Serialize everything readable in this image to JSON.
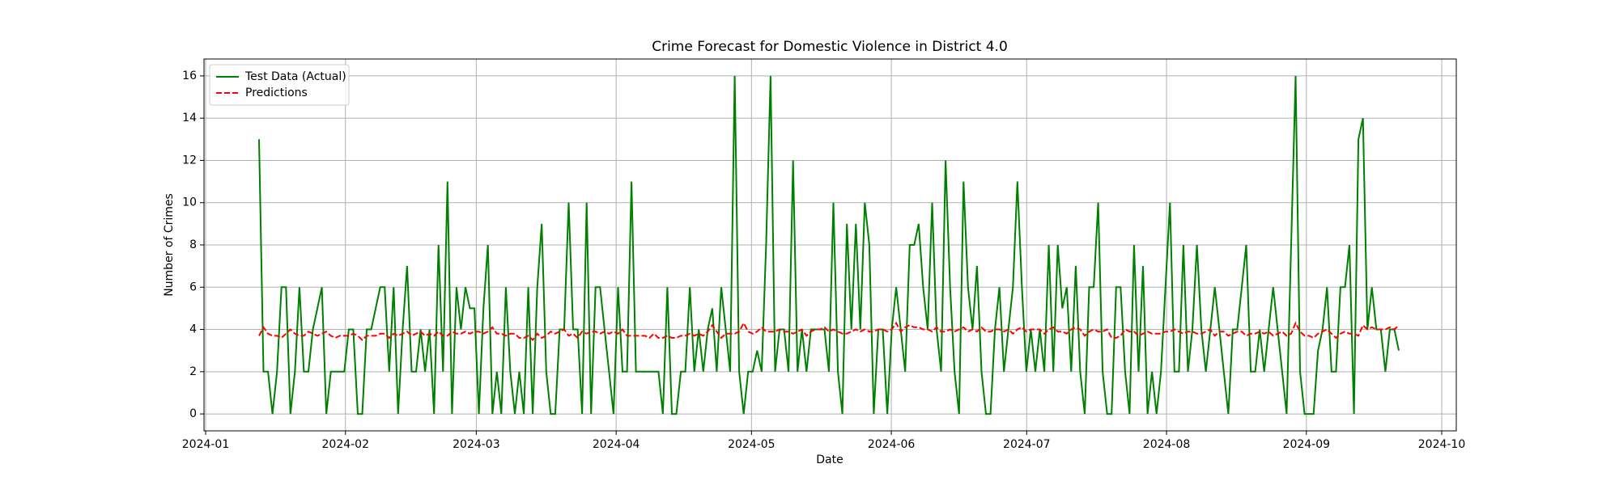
{
  "chart_data": {
    "type": "line",
    "title": "Crime Forecast for Domestic Violence in District 4.0",
    "xlabel": "Date",
    "ylabel": "Number of Crimes",
    "xticks": [
      "2024-01",
      "2024-02",
      "2024-03",
      "2024-04",
      "2024-05",
      "2024-06",
      "2024-07",
      "2024-08",
      "2024-09",
      "2024-10"
    ],
    "ylim": [
      -0.8,
      16.8
    ],
    "yticks": [
      0,
      2,
      4,
      6,
      8,
      10,
      12,
      14,
      16
    ],
    "grid": true,
    "legend": "upper left",
    "series": [
      {
        "name": "Test Data (Actual)",
        "color": "#008000",
        "style": "solid",
        "values": [
          13,
          2,
          2,
          0,
          2,
          6,
          6,
          0,
          2,
          6,
          2,
          2,
          4,
          5,
          6,
          0,
          2,
          2,
          2,
          2,
          4,
          4,
          0,
          0,
          4,
          4,
          5,
          6,
          6,
          2,
          6,
          0,
          4,
          7,
          2,
          2,
          4,
          2,
          4,
          0,
          8,
          2,
          11,
          0,
          6,
          4,
          6,
          5,
          5,
          0,
          5,
          8,
          0,
          2,
          0,
          6,
          2,
          0,
          2,
          0,
          6,
          0,
          6,
          9,
          2,
          0,
          0,
          4,
          4,
          10,
          4,
          4,
          0,
          10,
          0,
          6,
          6,
          4,
          2,
          0,
          6,
          2,
          2,
          11,
          2,
          2,
          2,
          2,
          2,
          2,
          0,
          6,
          0,
          0,
          2,
          2,
          6,
          2,
          4,
          2,
          4,
          5,
          2,
          6,
          4,
          2,
          16,
          2,
          0,
          2,
          2,
          3,
          2,
          8,
          16,
          2,
          4,
          4,
          2,
          12,
          2,
          4,
          2,
          4,
          4,
          4,
          4,
          2,
          10,
          2,
          0,
          9,
          4,
          9,
          4,
          10,
          8,
          0,
          4,
          4,
          0,
          4,
          6,
          4,
          2,
          8,
          8,
          9,
          6,
          4,
          10,
          4,
          2,
          12,
          6,
          2,
          0,
          11,
          6,
          4,
          7,
          2,
          0,
          0,
          4,
          6,
          2,
          4,
          6,
          11,
          6,
          2,
          4,
          2,
          4,
          2,
          8,
          2,
          8,
          5,
          6,
          2,
          7,
          2,
          0,
          6,
          6,
          10,
          2,
          0,
          0,
          6,
          6,
          2,
          0,
          8,
          2,
          7,
          0,
          2,
          0,
          2,
          6,
          10,
          2,
          2,
          8,
          2,
          4,
          8,
          4,
          2,
          4,
          6,
          4,
          2,
          0,
          4,
          4,
          6,
          8,
          2,
          2,
          4,
          2,
          4,
          6,
          4,
          2,
          0,
          8,
          16,
          2,
          0,
          0,
          0,
          3,
          4,
          6,
          2,
          2,
          6,
          6,
          8,
          0,
          13,
          14,
          4,
          6,
          4,
          4,
          2,
          4,
          4,
          3
        ]
      },
      {
        "name": "Predictions",
        "color": "#ff0000",
        "style": "dashed",
        "values": [
          3.7,
          4.1,
          3.8,
          3.7,
          3.7,
          3.6,
          3.8,
          4.0,
          3.8,
          3.7,
          3.7,
          3.9,
          3.8,
          3.7,
          3.8,
          3.9,
          3.7,
          3.6,
          3.7,
          3.7,
          3.7,
          3.8,
          3.7,
          3.5,
          3.7,
          3.7,
          3.7,
          3.8,
          3.8,
          3.6,
          3.8,
          3.7,
          3.8,
          3.9,
          3.7,
          3.8,
          3.9,
          3.7,
          3.8,
          3.7,
          3.9,
          3.7,
          3.7,
          3.9,
          3.8,
          3.8,
          3.9,
          3.8,
          3.9,
          3.9,
          3.8,
          3.9,
          4.1,
          3.8,
          3.8,
          3.7,
          3.8,
          3.8,
          3.6,
          3.6,
          3.7,
          3.5,
          3.8,
          3.6,
          3.7,
          3.9,
          3.8,
          3.9,
          4.0,
          3.7,
          3.8,
          3.6,
          3.9,
          3.8,
          3.9,
          3.9,
          3.8,
          3.9,
          3.8,
          3.9,
          3.8,
          4.0,
          3.7,
          3.7,
          3.7,
          3.7,
          3.7,
          3.6,
          3.8,
          3.6,
          3.6,
          3.7,
          3.6,
          3.6,
          3.7,
          3.7,
          3.8,
          3.7,
          3.8,
          3.7,
          3.9,
          4.2,
          3.9,
          3.6,
          3.8,
          3.8,
          3.8,
          3.9,
          4.3,
          3.9,
          3.8,
          3.9,
          4.1,
          3.9,
          3.9,
          3.9,
          4.0,
          3.9,
          3.9,
          3.8,
          3.9,
          4.0,
          3.7,
          3.9,
          4.0,
          4.0,
          4.1,
          3.9,
          4.0,
          3.9,
          3.8,
          3.8,
          3.9,
          4.0,
          3.9,
          4.0,
          3.9,
          3.9,
          4.0,
          4.0,
          3.9,
          4.0,
          4.3,
          3.9,
          4.1,
          4.2,
          4.1,
          4.1,
          4.0,
          4.0,
          3.9,
          4.1,
          3.9,
          3.9,
          4.0,
          3.9,
          4.0,
          4.1,
          3.9,
          4.0,
          3.9,
          4.1,
          3.9,
          3.9,
          4.0,
          4.0,
          3.9,
          4.0,
          3.8,
          4.0,
          4.1,
          3.9,
          4.0,
          4.0,
          4.0,
          3.8,
          4.0,
          4.1,
          3.9,
          3.9,
          3.8,
          4.0,
          4.1,
          4.0,
          3.7,
          3.9,
          4.0,
          3.9,
          3.9,
          4.0,
          3.6,
          3.6,
          3.7,
          4.0,
          3.9,
          3.9,
          3.7,
          3.8,
          3.9,
          3.8,
          3.8,
          3.8,
          3.9,
          3.9,
          4.0,
          3.9,
          3.8,
          3.9,
          3.9,
          3.8,
          3.8,
          3.9,
          4.0,
          3.7,
          3.9,
          3.9,
          3.7,
          3.8,
          3.9,
          3.9,
          3.7,
          3.8,
          3.8,
          3.9,
          3.8,
          3.9,
          3.7,
          3.8,
          3.9,
          3.7,
          3.8,
          4.3,
          3.9,
          3.7,
          3.7,
          3.6,
          3.8,
          3.9,
          4.0,
          3.8,
          3.6,
          3.8,
          3.9,
          3.8,
          3.8,
          3.7,
          4.2,
          4.0,
          4.1,
          4.0,
          4.0,
          4.0,
          4.1,
          4.0,
          4.2
        ]
      }
    ]
  }
}
